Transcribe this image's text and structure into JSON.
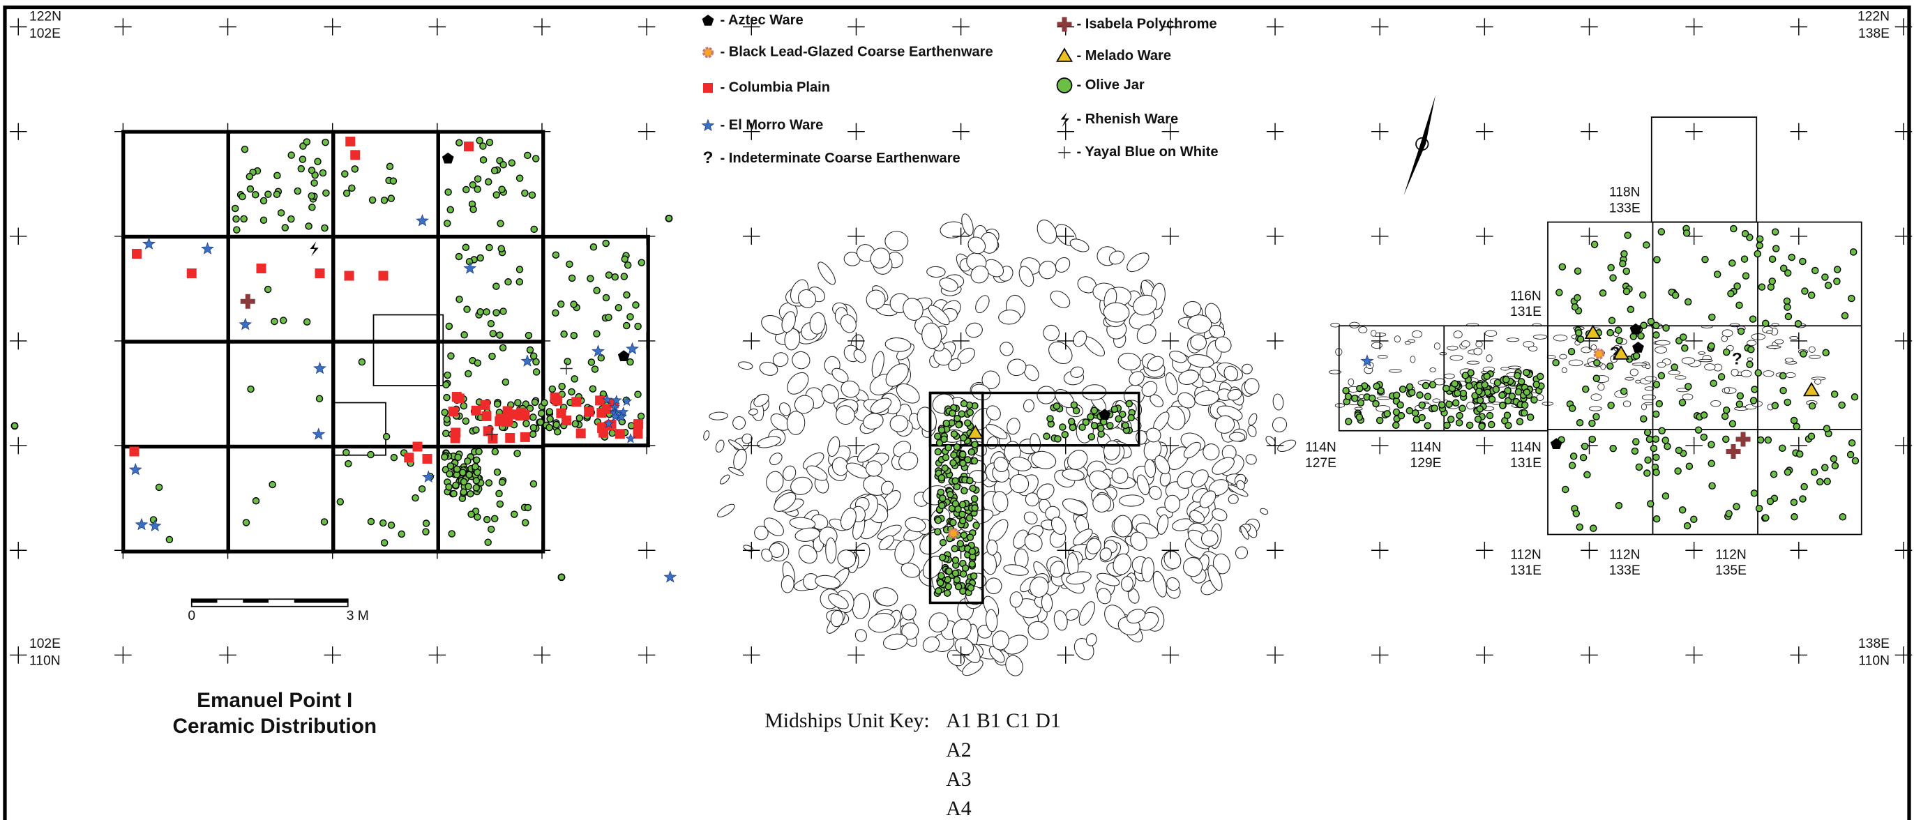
{
  "corners": [
    {
      "lines": [
        "122N",
        "102E"
      ]
    },
    {
      "lines": [
        "122N",
        "138E"
      ]
    },
    {
      "lines": [
        "102E",
        "110N"
      ]
    },
    {
      "lines": [
        "138E",
        "110N"
      ]
    }
  ],
  "legend": [
    "- Aztec Ware",
    "- Black Lead-Glazed Coarse Earthenware",
    "- Columbia Plain",
    "- El Morro Ware",
    "- Indeterminate Coarse Earthenware",
    "- Isabela Polychrome",
    "- Melado Ware",
    "- Olive Jar",
    "- Rhenish Ware",
    "- Yayal Blue on White"
  ],
  "grid_labels": [
    {
      "lines": [
        "118N",
        "133E"
      ]
    },
    {
      "lines": [
        "116N",
        "131E"
      ]
    },
    {
      "lines": [
        "114N",
        "127E"
      ]
    },
    {
      "lines": [
        "114N",
        "129E"
      ]
    },
    {
      "lines": [
        "114N",
        "131E"
      ]
    },
    {
      "lines": [
        "112N",
        "131E"
      ]
    },
    {
      "lines": [
        "112N",
        "133E"
      ]
    },
    {
      "lines": [
        "112N",
        "135E"
      ]
    }
  ],
  "scale": {
    "labels": [
      "0",
      "3 M"
    ]
  },
  "title": {
    "lines": [
      "Emanuel Point I",
      "Ceramic Distribution"
    ]
  },
  "unit_key": {
    "label": "Midships Unit Key:",
    "rows": [
      "A1 B1 C1 D1",
      "A2",
      "A3",
      "A4"
    ]
  }
}
